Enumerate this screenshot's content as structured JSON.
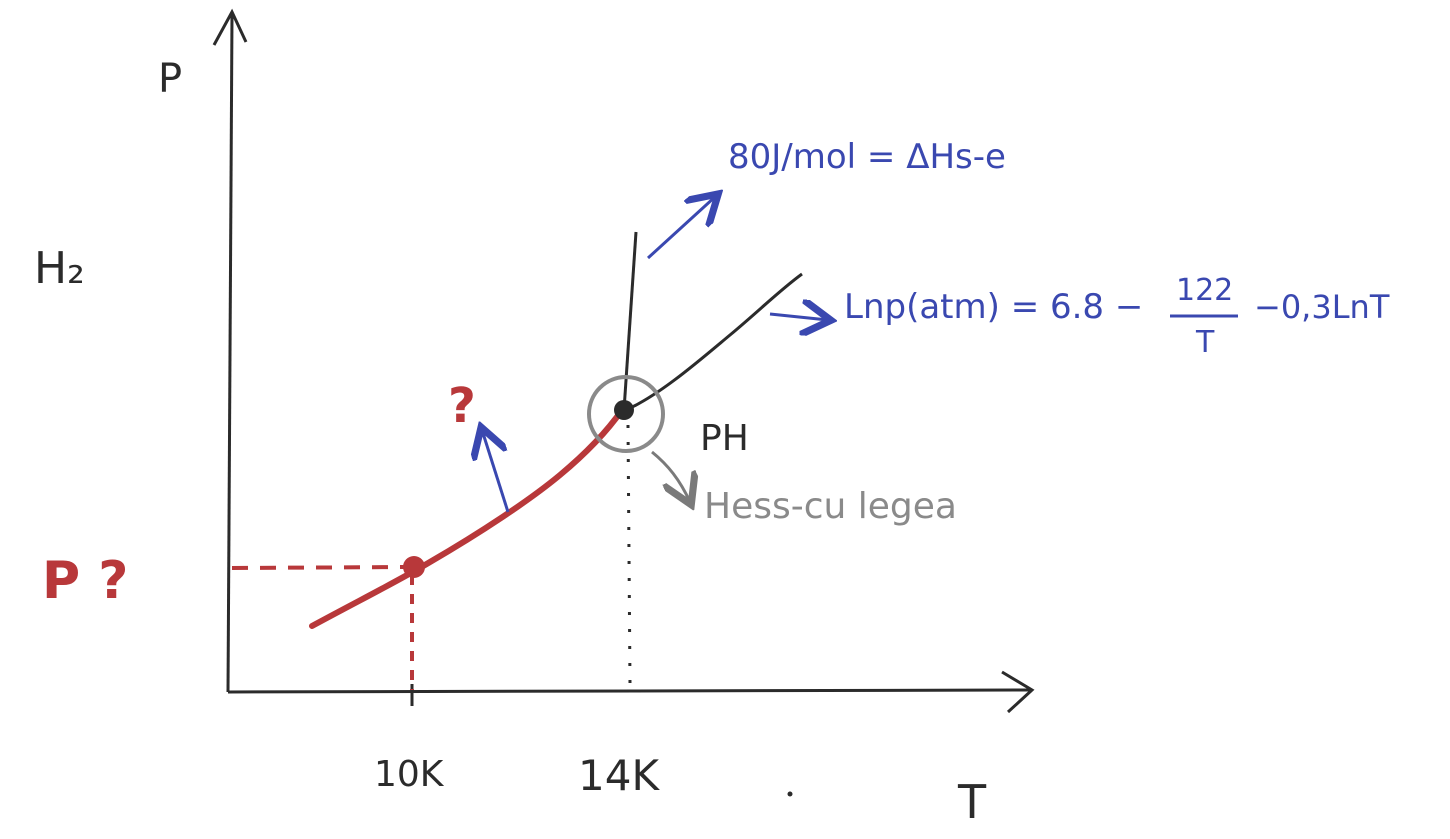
{
  "axes": {
    "y_label": "P",
    "x_label": "T",
    "substance": "H₂",
    "x_ticks": [
      "10K",
      "14K"
    ]
  },
  "annotations": {
    "enthalpy": "80J/mol = ΔHs-e",
    "pressure_eq_left": "Lnp(atm) = 6.8 −",
    "pressure_eq_num": "122",
    "pressure_eq_den": "T",
    "pressure_eq_right": "−0,3LnT",
    "triple_point": "PH",
    "point_label": "Hess-cu legea",
    "unknown_curve": "?",
    "unknown_pressure": "P ?"
  },
  "colors": {
    "ink": "#2b2b2b",
    "red": "#b8383a",
    "blue": "#3a48b0",
    "gray": "#8a8a8a"
  }
}
